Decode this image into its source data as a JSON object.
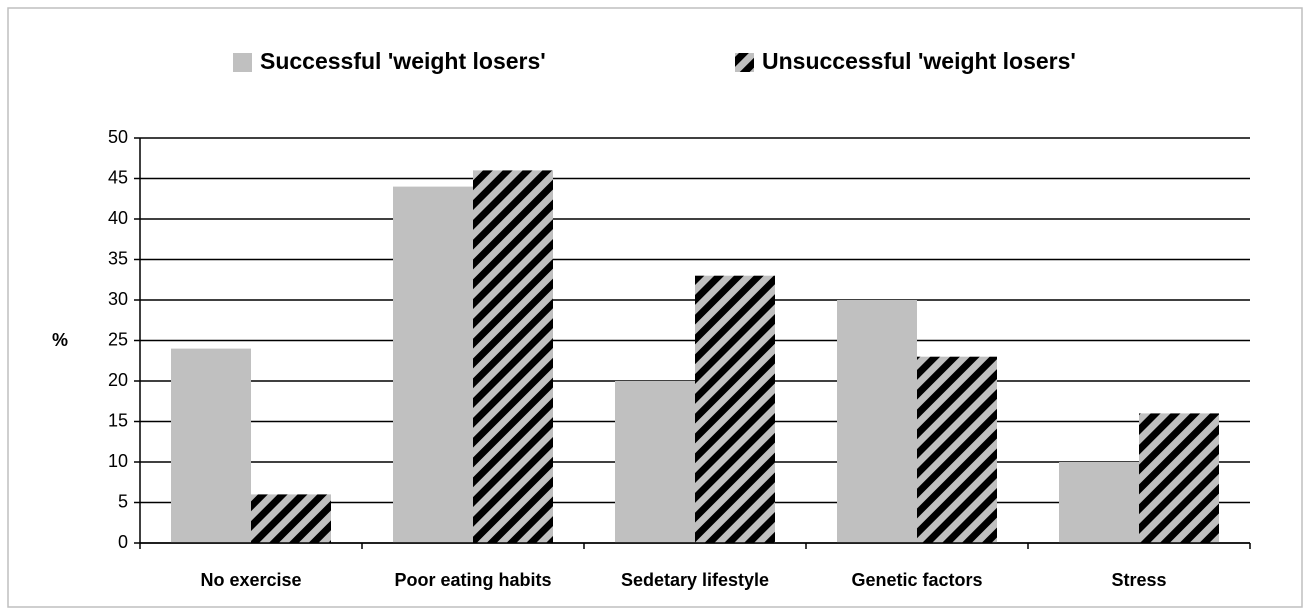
{
  "chart_data": {
    "type": "bar",
    "y_label": "%",
    "categories": [
      "No exercise",
      "Poor eating habits",
      "Sedetary lifestyle",
      "Genetic factors",
      "Stress"
    ],
    "series": [
      {
        "name": "Successful 'weight losers'",
        "color": "#c0c0c0",
        "values": [
          24,
          44,
          20,
          30,
          10
        ]
      },
      {
        "name": "Unsuccessful 'weight losers'",
        "color": "#c0c0c0",
        "hatch": true,
        "values": [
          6,
          46,
          33,
          23,
          16
        ]
      }
    ],
    "ylim": [
      0,
      50
    ],
    "yticks": [
      0,
      5,
      10,
      15,
      20,
      25,
      30,
      35,
      40,
      45,
      50
    ],
    "grid": true,
    "legend": "top"
  }
}
